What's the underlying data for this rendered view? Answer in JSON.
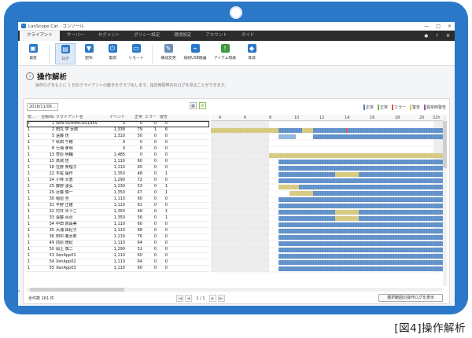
{
  "app": {
    "title": "LanScope Cat - コンソール",
    "window_controls": [
      "—",
      "□",
      "×"
    ]
  },
  "menu": {
    "tabs": [
      "クライアント",
      "サーバー",
      "セグメント",
      "ポリシー設定",
      "環境設定",
      "アカウント",
      "ガイド"
    ],
    "active_index": 0,
    "right_icons": [
      "user-icon",
      "help-icon",
      "settings-icon"
    ],
    "right_glyphs": [
      "●",
      "?",
      "⚙"
    ]
  },
  "toolbar": {
    "tools": [
      {
        "label": "資産",
        "icon": "asset-icon",
        "glyph": "▣",
        "color": "#2b78c9"
      },
      {
        "label": "ログ",
        "icon": "log-icon",
        "glyph": "▤",
        "color": "#2b78c9",
        "active": true
      },
      {
        "label": "配布",
        "icon": "distribution-icon",
        "glyph": "▼",
        "color": "#2b78c9"
      },
      {
        "label": "電源",
        "icon": "power-icon",
        "glyph": "⏻",
        "color": "#2b78c9"
      },
      {
        "label": "リモート",
        "icon": "remote-icon",
        "glyph": "▭",
        "color": "#2b78c9"
      },
      {
        "label": "構成変更",
        "icon": "config-change-icon",
        "glyph": "✎",
        "color": "#6b8fb5"
      },
      {
        "label": "接続USB機器",
        "icon": "usb-icon",
        "glyph": "⌁",
        "color": "#2b78c9"
      },
      {
        "label": "アイテム隠蔽",
        "icon": "warning-icon",
        "glyph": "!",
        "color": "#3f9a3f"
      },
      {
        "label": "脅威",
        "icon": "shield-icon",
        "glyph": "◆",
        "color": "#2b78c9"
      }
    ]
  },
  "page": {
    "title": "操作解析",
    "description": "操作ログをもとに 1 日のクライアントの動きをグラフ化します。指定時間帯内のログを見ることができます。"
  },
  "controls": {
    "date": "2018/11/08",
    "legend": [
      {
        "label": "正常",
        "color": "#4a7fc1"
      },
      {
        "label": "正常",
        "color": "#6ab04c"
      },
      {
        "label": "エラー",
        "color": "#d9534f"
      },
      {
        "label": "警告",
        "color": "#d4c36a"
      },
      {
        "label": "異常時警告",
        "color": "#8e5aa8"
      }
    ]
  },
  "table": {
    "columns": [
      "管...",
      "台帳No",
      "クライアント名",
      "イベント",
      "正常",
      "エラー",
      "警告"
    ],
    "rows": [
      [
        "1",
        "1",
        "WIN-S5H4MCROL46V",
        "0",
        "0",
        "0",
        "0"
      ],
      [
        "1",
        "2",
        "田丸 学 太郎",
        "1,338",
        "79",
        "1",
        "6"
      ],
      [
        "1",
        "5",
        "遠藤 悟",
        "1,310",
        "50",
        "0",
        "0"
      ],
      [
        "1",
        "7",
        "秋田 千穂",
        "0",
        "0",
        "0",
        "0"
      ],
      [
        "1",
        "8",
        "七海 孝明",
        "0",
        "0",
        "0",
        "0"
      ],
      [
        "1",
        "13",
        "菅原 明輔",
        "1,485",
        "0",
        "0",
        "0"
      ],
      [
        "1",
        "15",
        "高城 悟",
        "1,110",
        "60",
        "0",
        "0"
      ],
      [
        "1",
        "18",
        "在野 英理子",
        "1,110",
        "60",
        "0",
        "0"
      ],
      [
        "1",
        "22",
        "平尾 倫作",
        "1,350",
        "48",
        "0",
        "1"
      ],
      [
        "1",
        "24",
        "小林 大恵",
        "1,290",
        "72",
        "0",
        "0"
      ],
      [
        "1",
        "25",
        "藤野 湧弘",
        "1,230",
        "53",
        "0",
        "1"
      ],
      [
        "1",
        "29",
        "近藤 慎一",
        "1,350",
        "47",
        "0",
        "1"
      ],
      [
        "1",
        "30",
        "稲垣 圭",
        "1,110",
        "60",
        "0",
        "0"
      ],
      [
        "1",
        "31",
        "平野 正雄",
        "1,110",
        "61",
        "0",
        "0"
      ],
      [
        "1",
        "32",
        "村井 ゆうこ",
        "1,350",
        "48",
        "0",
        "1"
      ],
      [
        "1",
        "33",
        "遠藤 百合",
        "1,350",
        "56",
        "0",
        "1"
      ],
      [
        "1",
        "34",
        "中田 真由美",
        "1,110",
        "60",
        "0",
        "0"
      ],
      [
        "1",
        "35",
        "大浦 由紀子",
        "1,110",
        "68",
        "0",
        "0"
      ],
      [
        "1",
        "36",
        "田中 義太郎",
        "1,110",
        "76",
        "0",
        "0"
      ],
      [
        "1",
        "49",
        "前原 徳紀",
        "1,110",
        "64",
        "0",
        "0"
      ],
      [
        "1",
        "50",
        "岡上 慎二",
        "1,290",
        "51",
        "0",
        "0"
      ],
      [
        "1",
        "53",
        "XenApp01",
        "1,110",
        "60",
        "0",
        "0"
      ],
      [
        "1",
        "54",
        "XenApp02",
        "1,110",
        "64",
        "0",
        "0"
      ],
      [
        "1",
        "55",
        "XenApp03",
        "1,110",
        "60",
        "0",
        "0"
      ]
    ],
    "selected_row": 0
  },
  "timeline": {
    "hours": [
      "4",
      "6",
      "8",
      "10",
      "12",
      "14",
      "16",
      "18",
      "20",
      "22h"
    ]
  },
  "footer": {
    "total": "全件数 261 件",
    "page_info": "1 / 1",
    "prev_first": "|◀",
    "prev": "◀",
    "next": "▶",
    "next_last": "▶|",
    "show_button": "選択範囲の操作ログを表示"
  },
  "caption": "[図4]操作解析"
}
